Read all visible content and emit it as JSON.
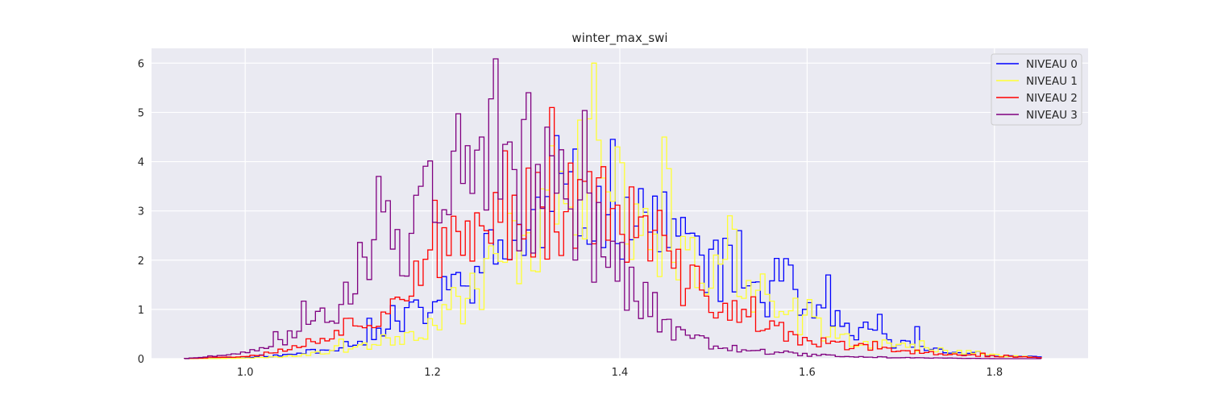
{
  "chart_data": {
    "type": "histogram-step",
    "title": "winter_max_swi",
    "xlabel": "",
    "ylabel": "",
    "xlim": [
      0.9,
      1.9
    ],
    "ylim": [
      0,
      6.3
    ],
    "xticks": [
      1.0,
      1.2,
      1.4,
      1.6,
      1.8
    ],
    "xtick_labels": [
      "1.0",
      "1.2",
      "1.4",
      "1.6",
      "1.8"
    ],
    "yticks": [
      0,
      1,
      2,
      3,
      4,
      5,
      6
    ],
    "ytick_labels": [
      "0",
      "1",
      "2",
      "3",
      "4",
      "5",
      "6"
    ],
    "grid": true,
    "legend_position": "top-right",
    "bins": {
      "start": 0.935,
      "end": 1.85,
      "count": 183
    },
    "series": [
      {
        "name": "NIVEAU 0",
        "color": "#0000ff",
        "anchors": [
          [
            0.935,
            0
          ],
          [
            1.0,
            0.02
          ],
          [
            1.05,
            0.08
          ],
          [
            1.1,
            0.25
          ],
          [
            1.15,
            0.55
          ],
          [
            1.2,
            1.1
          ],
          [
            1.25,
            1.8
          ],
          [
            1.3,
            2.6
          ],
          [
            1.35,
            3.1
          ],
          [
            1.38,
            3.3
          ],
          [
            1.4,
            3.2
          ],
          [
            1.43,
            3.0
          ],
          [
            1.46,
            2.5
          ],
          [
            1.5,
            1.9
          ],
          [
            1.55,
            1.4
          ],
          [
            1.6,
            0.9
          ],
          [
            1.65,
            0.55
          ],
          [
            1.7,
            0.3
          ],
          [
            1.75,
            0.15
          ],
          [
            1.8,
            0.06
          ],
          [
            1.85,
            0.03
          ]
        ],
        "noise": 0.38,
        "seed": 11,
        "spikes": [
          [
            1.38,
            3.5
          ],
          [
            1.44,
            3.3
          ],
          [
            1.53,
            2.6
          ],
          [
            1.58,
            1.9
          ],
          [
            1.62,
            1.7
          ],
          [
            1.68,
            0.9
          ],
          [
            1.72,
            0.65
          ]
        ]
      },
      {
        "name": "NIVEAU 1",
        "color": "#ffff33",
        "anchors": [
          [
            0.935,
            0
          ],
          [
            1.0,
            0.01
          ],
          [
            1.05,
            0.05
          ],
          [
            1.1,
            0.2
          ],
          [
            1.15,
            0.35
          ],
          [
            1.2,
            0.7
          ],
          [
            1.25,
            1.5
          ],
          [
            1.3,
            2.6
          ],
          [
            1.35,
            3.7
          ],
          [
            1.38,
            3.8
          ],
          [
            1.4,
            3.2
          ],
          [
            1.43,
            3.0
          ],
          [
            1.46,
            2.2
          ],
          [
            1.5,
            1.7
          ],
          [
            1.55,
            1.0
          ],
          [
            1.6,
            0.7
          ],
          [
            1.65,
            0.4
          ],
          [
            1.7,
            0.25
          ],
          [
            1.75,
            0.15
          ],
          [
            1.8,
            0.08
          ],
          [
            1.85,
            0.02
          ]
        ],
        "noise": 0.42,
        "seed": 23,
        "spikes": [
          [
            1.37,
            6.0
          ],
          [
            1.4,
            4.3
          ],
          [
            1.445,
            4.5
          ],
          [
            1.52,
            2.9
          ],
          [
            1.6,
            1.2
          ]
        ]
      },
      {
        "name": "NIVEAU 2",
        "color": "#ff0000",
        "anchors": [
          [
            0.935,
            0
          ],
          [
            1.0,
            0.05
          ],
          [
            1.05,
            0.2
          ],
          [
            1.1,
            0.6
          ],
          [
            1.15,
            1.0
          ],
          [
            1.2,
            1.8
          ],
          [
            1.25,
            2.7
          ],
          [
            1.3,
            3.0
          ],
          [
            1.35,
            3.1
          ],
          [
            1.38,
            3.0
          ],
          [
            1.4,
            2.8
          ],
          [
            1.43,
            2.5
          ],
          [
            1.46,
            1.7
          ],
          [
            1.5,
            1.2
          ],
          [
            1.55,
            0.65
          ],
          [
            1.6,
            0.35
          ],
          [
            1.65,
            0.25
          ],
          [
            1.7,
            0.15
          ],
          [
            1.75,
            0.1
          ],
          [
            1.8,
            0.05
          ],
          [
            1.85,
            0.02
          ]
        ],
        "noise": 0.35,
        "seed": 37,
        "spikes": [
          [
            1.36,
            3.6
          ],
          [
            1.43,
            2.9
          ],
          [
            1.48,
            1.9
          ]
        ]
      },
      {
        "name": "NIVEAU 3",
        "color": "#800080",
        "anchors": [
          [
            0.935,
            0
          ],
          [
            1.0,
            0.1
          ],
          [
            1.05,
            0.45
          ],
          [
            1.1,
            1.2
          ],
          [
            1.15,
            2.3
          ],
          [
            1.2,
            2.9
          ],
          [
            1.25,
            3.3
          ],
          [
            1.3,
            3.5
          ],
          [
            1.33,
            3.4
          ],
          [
            1.36,
            2.8
          ],
          [
            1.4,
            1.8
          ],
          [
            1.43,
            1.1
          ],
          [
            1.46,
            0.55
          ],
          [
            1.5,
            0.3
          ],
          [
            1.55,
            0.15
          ],
          [
            1.6,
            0.08
          ],
          [
            1.65,
            0.04
          ],
          [
            1.7,
            0.02
          ],
          [
            1.75,
            0.01
          ],
          [
            1.8,
            0.0
          ],
          [
            1.85,
            0
          ]
        ],
        "noise": 0.4,
        "seed": 51,
        "spikes": [
          [
            1.145,
            3.7
          ],
          [
            1.185,
            3.5
          ],
          [
            1.255,
            4.5
          ],
          [
            1.305,
            5.4
          ],
          [
            1.325,
            4.7
          ],
          [
            1.28,
            4.4
          ]
        ]
      }
    ]
  }
}
